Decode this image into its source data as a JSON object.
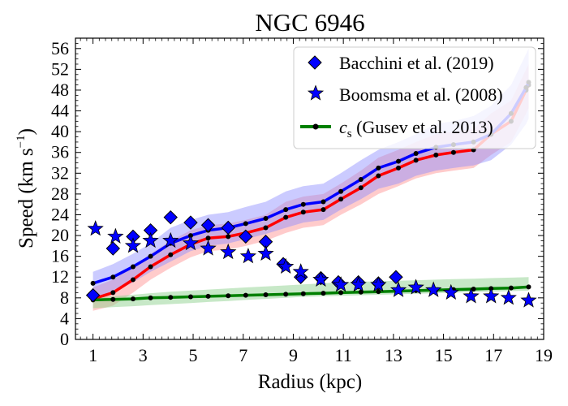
{
  "chart_data": {
    "type": "line",
    "title": "NGC 6946",
    "xlabel": "Radius (kpc)",
    "ylabel_main": "Speed (km s",
    "ylabel_sup": "−1",
    "ylabel_close": ")",
    "xlim": [
      0.3,
      19
    ],
    "ylim": [
      0,
      58
    ],
    "xticks": [
      "1",
      "3",
      "5",
      "7",
      "9",
      "11",
      "13",
      "15",
      "17",
      "19"
    ],
    "yticks": [
      "0",
      "4",
      "8",
      "12",
      "16",
      "20",
      "24",
      "28",
      "32",
      "36",
      "40",
      "44",
      "48",
      "52",
      "56"
    ],
    "legend_position": "top-right",
    "grid": false,
    "legend": {
      "bacchini": "Bacchini et al. (2019)",
      "boomsma": "Boomsma et al. (2008)",
      "cs_symbol": "c",
      "cs_sub": "s",
      "cs_rest": " (Gusev et al. 2013)"
    },
    "colors": {
      "blue_marker": "#0000ff",
      "blue_line": "#0000ff",
      "red_line": "#ff0000",
      "green_line": "#008000",
      "blue_band": "#8c8cff",
      "red_band": "#ff8c8c",
      "green_band": "#8fd18f"
    },
    "series": [
      {
        "name": "Bacchini et al. (2019)",
        "marker": "diamond",
        "x": [
          1.0,
          1.8,
          2.6,
          3.3,
          4.1,
          4.9,
          5.6,
          6.4,
          7.1,
          7.9,
          8.6,
          9.3,
          10.1,
          10.8,
          11.6,
          12.4,
          13.1
        ],
        "y": [
          8.5,
          17.5,
          19.8,
          21.0,
          23.5,
          22.5,
          22.0,
          21.5,
          19.8,
          18.8,
          14.5,
          12.0,
          11.8,
          11.0,
          11.0,
          10.8,
          12.0
        ]
      },
      {
        "name": "Boomsma et al. (2008)",
        "marker": "star",
        "x": [
          1.1,
          1.9,
          2.6,
          3.3,
          4.1,
          4.9,
          5.6,
          6.4,
          7.2,
          7.9,
          8.7,
          9.3,
          10.1,
          10.9,
          11.6,
          12.4,
          13.2,
          13.9,
          14.6,
          15.3,
          16.1,
          16.9,
          17.6,
          18.4
        ],
        "y": [
          21.3,
          19.8,
          18.0,
          19.0,
          19.0,
          18.5,
          17.5,
          16.8,
          16.0,
          16.5,
          14.0,
          13.0,
          11.5,
          10.5,
          10.5,
          10.5,
          9.5,
          10.0,
          9.5,
          9.0,
          8.3,
          8.3,
          8.0,
          7.5
        ]
      },
      {
        "name": "cs (Gusev et al. 2013)",
        "x": [
          1.0,
          1.8,
          2.6,
          3.3,
          4.1,
          4.9,
          5.6,
          6.4,
          7.1,
          7.9,
          8.7,
          9.4,
          10.2,
          10.9,
          11.7,
          12.4,
          13.2,
          13.9,
          14.7,
          15.4,
          16.2,
          16.9,
          17.7,
          18.4
        ],
        "y": [
          7.6,
          7.7,
          7.8,
          8.0,
          8.1,
          8.2,
          8.3,
          8.4,
          8.5,
          8.6,
          8.7,
          8.8,
          8.9,
          9.0,
          9.1,
          9.2,
          9.3,
          9.4,
          9.5,
          9.6,
          9.7,
          9.8,
          9.9,
          10.1
        ],
        "band_lower": [
          6.0,
          6.2,
          6.4,
          6.6,
          6.8,
          7.0,
          7.2,
          7.4,
          7.6,
          7.8,
          8.0,
          8.2,
          8.3,
          8.4,
          8.5,
          8.6,
          8.7,
          8.8,
          8.9,
          9.0,
          9.1,
          9.2,
          9.3,
          9.4
        ],
        "band_upper": [
          8.0,
          8.3,
          8.6,
          8.9,
          9.2,
          9.4,
          9.6,
          9.8,
          10.0,
          10.2,
          10.4,
          10.6,
          10.8,
          11.0,
          11.1,
          11.2,
          11.3,
          11.4,
          11.5,
          11.6,
          11.7,
          11.8,
          11.9,
          12.0
        ]
      },
      {
        "name": "",
        "line": "blue",
        "x": [
          1.0,
          1.8,
          2.6,
          3.3,
          4.1,
          4.9,
          5.6,
          6.4,
          7.1,
          7.9,
          8.7,
          9.4,
          10.2,
          10.9,
          11.7,
          12.4,
          13.2,
          13.9,
          14.7,
          15.4,
          16.2,
          16.9,
          17.7,
          18.3,
          18.4
        ],
        "y": [
          10.8,
          12.0,
          14.0,
          16.0,
          18.5,
          20.0,
          21.0,
          21.5,
          22.3,
          23.3,
          25.0,
          26.0,
          26.5,
          28.5,
          30.8,
          33.0,
          34.3,
          35.8,
          37.0,
          37.5,
          38.0,
          39.5,
          43.5,
          48.5,
          49.5
        ],
        "band_lower": [
          8.0,
          9.0,
          11.0,
          13.0,
          15.0,
          17.0,
          18.0,
          18.5,
          19.3,
          20.3,
          21.5,
          22.5,
          23.0,
          25.0,
          27.0,
          29.0,
          30.0,
          31.5,
          32.5,
          33.0,
          33.5,
          34.5,
          37.5,
          41.5,
          42.5
        ],
        "band_upper": [
          13.0,
          14.5,
          16.5,
          18.5,
          21.5,
          23.0,
          24.0,
          24.5,
          25.5,
          26.5,
          28.5,
          29.5,
          30.0,
          32.0,
          34.5,
          36.5,
          38.0,
          39.5,
          41.5,
          42.0,
          43.0,
          45.0,
          49.0,
          55.0,
          56.0
        ]
      },
      {
        "name": "",
        "line": "red",
        "x": [
          1.0,
          1.8,
          2.6,
          3.3,
          4.1,
          4.9,
          5.6,
          6.4,
          7.1,
          7.9,
          8.7,
          9.4,
          10.2,
          10.9,
          11.7,
          12.4,
          13.2,
          13.9,
          14.7,
          15.4,
          16.2,
          16.9,
          17.7,
          18.3,
          18.4
        ],
        "y": [
          7.8,
          9.0,
          11.5,
          14.0,
          16.3,
          18.3,
          19.5,
          19.8,
          20.5,
          21.5,
          23.5,
          24.5,
          25.0,
          27.0,
          29.2,
          31.5,
          33.0,
          34.5,
          35.5,
          36.0,
          36.5,
          39.5,
          42.0,
          48.0,
          49.0
        ],
        "band_lower": [
          5.5,
          6.5,
          9.0,
          11.5,
          13.8,
          15.8,
          17.0,
          17.3,
          18.0,
          19.0,
          20.5,
          21.5,
          22.0,
          24.0,
          26.0,
          28.0,
          29.5,
          31.0,
          32.0,
          32.5,
          33.0,
          35.5,
          38.0,
          43.5,
          44.5
        ],
        "band_upper": [
          10.0,
          11.5,
          14.0,
          16.5,
          19.0,
          21.0,
          22.0,
          22.3,
          23.0,
          24.0,
          26.5,
          27.5,
          28.0,
          30.0,
          32.5,
          35.0,
          36.5,
          38.0,
          39.5,
          40.0,
          40.5,
          43.5,
          46.0,
          52.0,
          53.0
        ]
      }
    ]
  }
}
